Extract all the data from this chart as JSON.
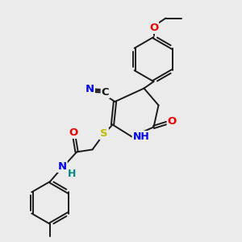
{
  "background_color": "#ebebeb",
  "bond_color": "#1a1a1a",
  "atom_colors": {
    "N": "#0000ee",
    "O": "#ee0000",
    "S": "#bbbb00",
    "C_label": "#1a1a1a",
    "H": "#008888"
  },
  "figsize": [
    3.0,
    3.0
  ],
  "dpi": 100
}
